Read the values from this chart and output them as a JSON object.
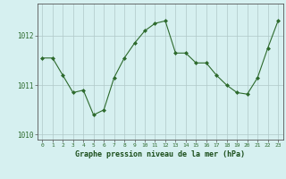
{
  "x": [
    0,
    1,
    2,
    3,
    4,
    5,
    6,
    7,
    8,
    9,
    10,
    11,
    12,
    13,
    14,
    15,
    16,
    17,
    18,
    19,
    20,
    21,
    22,
    23
  ],
  "y": [
    1011.55,
    1011.55,
    1011.2,
    1010.85,
    1010.9,
    1010.4,
    1010.5,
    1011.15,
    1011.55,
    1011.85,
    1012.1,
    1012.25,
    1012.3,
    1011.65,
    1011.65,
    1011.45,
    1011.45,
    1011.2,
    1011.0,
    1010.85,
    1010.82,
    1011.15,
    1011.75,
    1012.3
  ],
  "line_color": "#2d6a2d",
  "marker": "D",
  "marker_size": 2.0,
  "linewidth": 0.8,
  "bg_color": "#d6f0f0",
  "grid_color": "#b0c8c8",
  "xlabel": "Graphe pression niveau de la mer (hPa)",
  "xlabel_color": "#1a4d1a",
  "tick_color": "#2d6a2d",
  "ylim": [
    1009.9,
    1012.65
  ],
  "yticks": [
    1010,
    1011,
    1012
  ],
  "xticks": [
    0,
    1,
    2,
    3,
    4,
    5,
    6,
    7,
    8,
    9,
    10,
    11,
    12,
    13,
    14,
    15,
    16,
    17,
    18,
    19,
    20,
    21,
    22,
    23
  ],
  "axis_color": "#555555"
}
